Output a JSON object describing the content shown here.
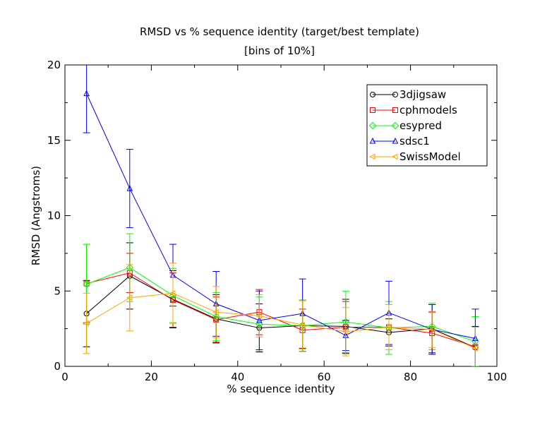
{
  "chart_data": {
    "type": "line",
    "title": "RMSD vs % sequence identity (target/best template)",
    "subtitle": "[bins of 10%]",
    "xlabel": "% sequence identity",
    "ylabel": "RMSD (Angstroms)",
    "xlim": [
      0,
      100
    ],
    "ylim": [
      0,
      20
    ],
    "xticks": [
      "0",
      "20",
      "40",
      "60",
      "80",
      "100"
    ],
    "yticks": [
      "0",
      "5",
      "10",
      "15",
      "20"
    ],
    "grid": false,
    "legend_position": "top-right",
    "x": [
      5,
      15,
      25,
      35,
      45,
      55,
      65,
      75,
      85,
      95
    ],
    "series": [
      {
        "name": "3djigsaw",
        "color": "#000000",
        "marker": "circle",
        "values": [
          3.5,
          6.0,
          4.45,
          3.15,
          2.55,
          2.7,
          2.65,
          2.25,
          2.5,
          1.25
        ],
        "err": [
          2.2,
          2.2,
          1.9,
          1.6,
          1.6,
          1.7,
          1.8,
          0.9,
          1.6,
          1.4
        ]
      },
      {
        "name": "cphmodels",
        "color": "#ff0000",
        "marker": "square",
        "values": [
          5.5,
          6.2,
          4.4,
          3.1,
          3.6,
          2.4,
          2.6,
          2.6,
          2.2,
          1.3
        ],
        "err": [
          2.6,
          1.3,
          1.8,
          1.5,
          1.5,
          1.4,
          1.7,
          1.5,
          1.4,
          1.3
        ]
      },
      {
        "name": "esypred",
        "color": "#00ff00",
        "marker": "diamond",
        "values": [
          5.45,
          6.55,
          4.7,
          3.3,
          2.8,
          2.7,
          2.95,
          2.55,
          2.65,
          1.65
        ],
        "err": [
          2.65,
          2.25,
          1.8,
          1.6,
          1.8,
          1.7,
          2.05,
          1.75,
          1.55,
          1.65
        ]
      },
      {
        "name": "sdsc1",
        "color": "#0000ff",
        "marker": "triangle-up",
        "values": [
          18.1,
          11.8,
          6.05,
          4.15,
          3.05,
          3.5,
          2.05,
          3.55,
          2.45,
          1.85
        ],
        "err": [
          2.6,
          2.6,
          2.05,
          2.15,
          1.95,
          2.3,
          1.0,
          2.1,
          1.65,
          1.95
        ]
      },
      {
        "name": "SwissModel",
        "color": "#ffa500",
        "marker": "triangle-left",
        "values": [
          2.85,
          4.55,
          4.85,
          3.6,
          3.35,
          2.75,
          2.3,
          2.6,
          2.45,
          1.2
        ],
        "err": [
          2.0,
          2.2,
          2.0,
          1.7,
          1.4,
          1.6,
          1.6,
          1.5,
          1.2,
          1.4
        ]
      }
    ]
  }
}
